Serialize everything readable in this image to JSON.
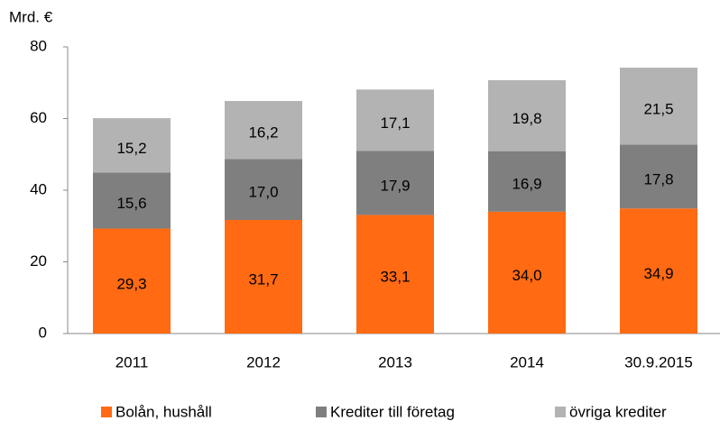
{
  "chart_data": {
    "type": "stacked_bar",
    "y_axis_label": "Mrd. €",
    "categories": [
      "2011",
      "2012",
      "2013",
      "2014",
      "30.9.2015"
    ],
    "series": [
      {
        "name": "Bolån, hushåll",
        "color": "#ff6a13",
        "values": [
          29.3,
          31.7,
          33.1,
          34.0,
          34.9
        ],
        "value_labels": [
          "29,3",
          "31,7",
          "33,1",
          "34,0",
          "34,9"
        ]
      },
      {
        "name": "Krediter till företag",
        "color": "#7f7f7f",
        "values": [
          15.6,
          17.0,
          17.9,
          16.9,
          17.8
        ],
        "value_labels": [
          "15,6",
          "17,0",
          "17,9",
          "16,9",
          "17,8"
        ]
      },
      {
        "name": "övriga krediter",
        "color": "#b3b3b3",
        "values": [
          15.2,
          16.2,
          17.1,
          19.8,
          21.5
        ],
        "value_labels": [
          "15,2",
          "16,2",
          "17,1",
          "19,8",
          "21,5"
        ]
      }
    ],
    "ylim": [
      0,
      80
    ],
    "yticks": [
      0,
      20,
      40,
      60,
      80
    ],
    "grid": false,
    "legend": "bottom"
  }
}
